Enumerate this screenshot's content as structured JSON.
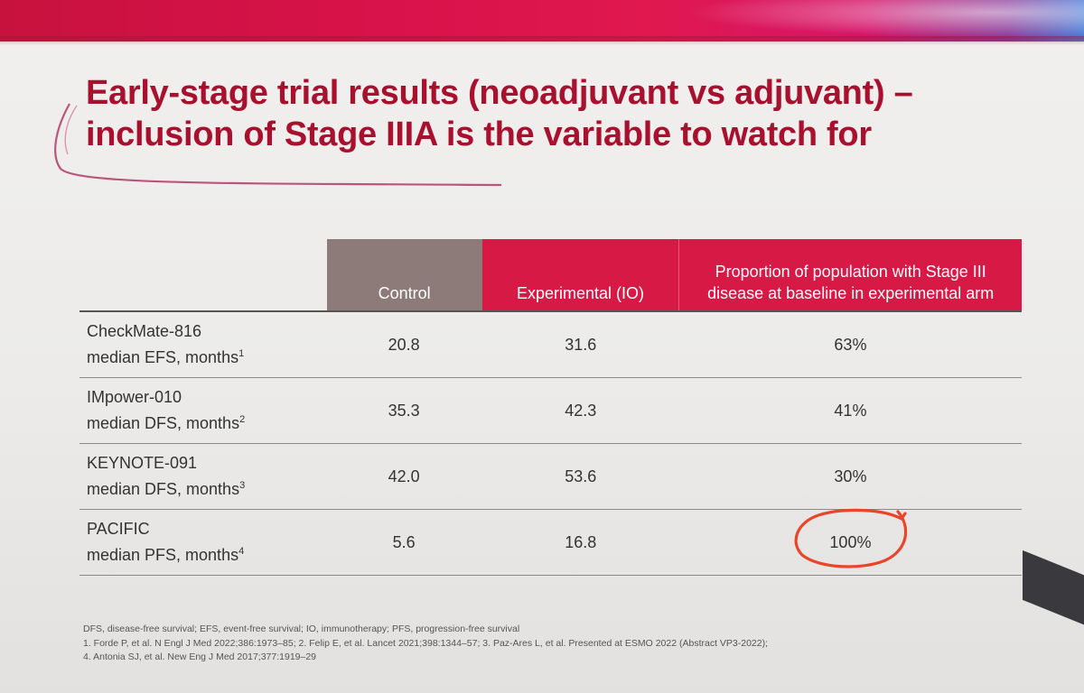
{
  "title": {
    "line1": "Early-stage trial results (neoadjuvant vs adjuvant) –",
    "line2": "inclusion of Stage IIIA is the variable to watch for"
  },
  "table": {
    "headers": {
      "control": "Control",
      "experimental": "Experimental (IO)",
      "proportion_line1": "Proportion of population with Stage III",
      "proportion_line2": "disease at baseline in experimental arm"
    },
    "rows": [
      {
        "trial": "CheckMate-816",
        "metric": "median EFS, months",
        "ref": "1",
        "control": "20.8",
        "experimental": "31.6",
        "proportion": "63%"
      },
      {
        "trial": "IMpower-010",
        "metric": "median DFS, months",
        "ref": "2",
        "control": "35.3",
        "experimental": "42.3",
        "proportion": "41%"
      },
      {
        "trial": "KEYNOTE-091",
        "metric": "median DFS, months",
        "ref": "3",
        "control": "42.0",
        "experimental": "53.6",
        "proportion": "30%"
      },
      {
        "trial": "PACIFIC",
        "metric": "median PFS, months",
        "ref": "4",
        "control": "5.6",
        "experimental": "16.8",
        "proportion": "100%"
      }
    ]
  },
  "footnotes": {
    "abbreviations": "DFS, disease-free survival; EFS, event-free survival; IO, immunotherapy; PFS, progression-free survival",
    "refs_line1": "1. Forde P, et al. N Engl J Med 2022;386:1973–85; 2. Felip E, et al. Lancet 2021;398:1344–57; 3. Paz-Ares L, et al. Presented at ESMO 2022 (Abstract VP3-2022);",
    "refs_line2": "4. Antonia SJ, et al. New Eng J Med 2017;377:1919–29"
  },
  "colors": {
    "title_red": "#a8102e",
    "header_control": "#8d7b79",
    "header_accent": "#d61a45",
    "annotation_circle": "#e8452a"
  },
  "annotation": {
    "circled_value": "100%"
  }
}
